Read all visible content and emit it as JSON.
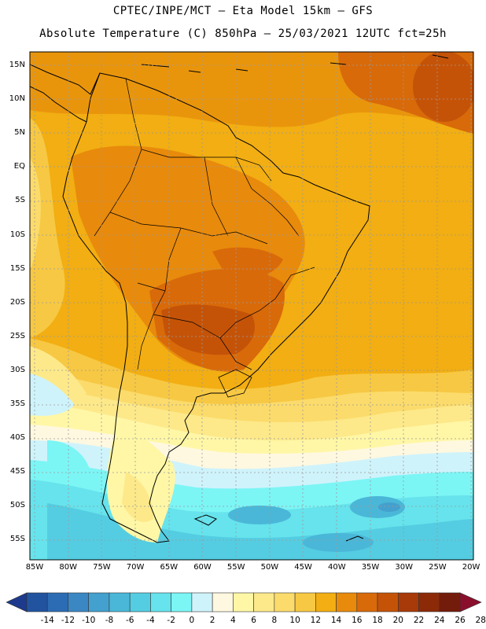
{
  "title_line1": "CPTEC/INPE/MCT –  Eta Model 15km – GFS",
  "title_line2": "Absolute Temperature (C) 850hPa – 25/03/2021 12UTC fct=25h",
  "lat_labels": [
    "15N",
    "10N",
    "5N",
    "EQ",
    "5S",
    "10S",
    "15S",
    "20S",
    "25S",
    "30S",
    "35S",
    "40S",
    "45S",
    "50S",
    "55S"
  ],
  "lon_labels": [
    "85W",
    "80W",
    "75W",
    "70W",
    "65W",
    "60W",
    "55W",
    "50W",
    "45W",
    "40W",
    "35W",
    "30W",
    "25W",
    "20W"
  ],
  "colorbar": {
    "labels": [
      "-14",
      "-12",
      "-10",
      "-8",
      "-6",
      "-4",
      "-2",
      "0",
      "2",
      "4",
      "6",
      "8",
      "10",
      "12",
      "14",
      "16",
      "18",
      "20",
      "22",
      "24",
      "26",
      "28"
    ],
    "colors": [
      "#1d3a8c",
      "#22539f",
      "#2c6cb4",
      "#3a87c3",
      "#44a0ce",
      "#4ab7d8",
      "#54cde2",
      "#66e3ec",
      "#7cf5f5",
      "#cff3fb",
      "#fff8e0",
      "#fff7a6",
      "#fde98a",
      "#fbdb6b",
      "#f7c843",
      "#f2ae12",
      "#e88a0c",
      "#d86a0a",
      "#c45308",
      "#a73a08",
      "#8c2a08",
      "#741c0c",
      "#8a0f2c"
    ]
  }
}
